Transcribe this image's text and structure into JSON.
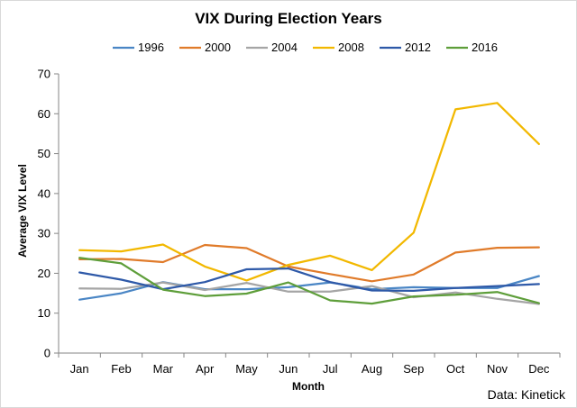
{
  "chart_data": {
    "type": "line",
    "title": "VIX During Election Years",
    "xlabel": "Month",
    "ylabel": "Average VIX Level",
    "categories": [
      "Jan",
      "Feb",
      "Mar",
      "Apr",
      "May",
      "Jun",
      "Jul",
      "Aug",
      "Sep",
      "Oct",
      "Nov",
      "Dec"
    ],
    "ylim": [
      0,
      70
    ],
    "yticks": [
      0,
      10,
      20,
      30,
      40,
      50,
      60,
      70
    ],
    "grid": false,
    "legend": "top",
    "source": "Data: Kinetick",
    "series": [
      {
        "name": "1996",
        "color": "#4a86c5",
        "values": [
          13.4,
          15.0,
          17.8,
          16.0,
          16.0,
          16.5,
          17.7,
          16.0,
          16.5,
          16.3,
          16.3,
          19.3
        ]
      },
      {
        "name": "2000",
        "color": "#e07b2a",
        "values": [
          23.5,
          23.6,
          22.8,
          27.1,
          26.3,
          21.7,
          19.8,
          18.0,
          19.7,
          25.2,
          26.4,
          26.5
        ]
      },
      {
        "name": "2004",
        "color": "#a5a5a5",
        "values": [
          16.2,
          16.1,
          17.7,
          15.8,
          17.6,
          15.4,
          15.4,
          16.8,
          14.0,
          15.2,
          13.6,
          12.3
        ]
      },
      {
        "name": "2008",
        "color": "#f2b800",
        "values": [
          25.8,
          25.5,
          27.2,
          21.7,
          18.2,
          22.1,
          24.4,
          20.8,
          30.2,
          61.1,
          62.7,
          52.4
        ]
      },
      {
        "name": "2012",
        "color": "#2e59a8",
        "values": [
          20.2,
          18.4,
          16.0,
          17.8,
          21.0,
          21.2,
          17.8,
          15.7,
          15.6,
          16.3,
          16.8,
          17.3
        ]
      },
      {
        "name": "2016",
        "color": "#5e9e3a",
        "values": [
          23.9,
          22.5,
          15.9,
          14.3,
          14.9,
          17.7,
          13.2,
          12.4,
          14.2,
          14.6,
          15.3,
          12.5
        ]
      }
    ]
  }
}
